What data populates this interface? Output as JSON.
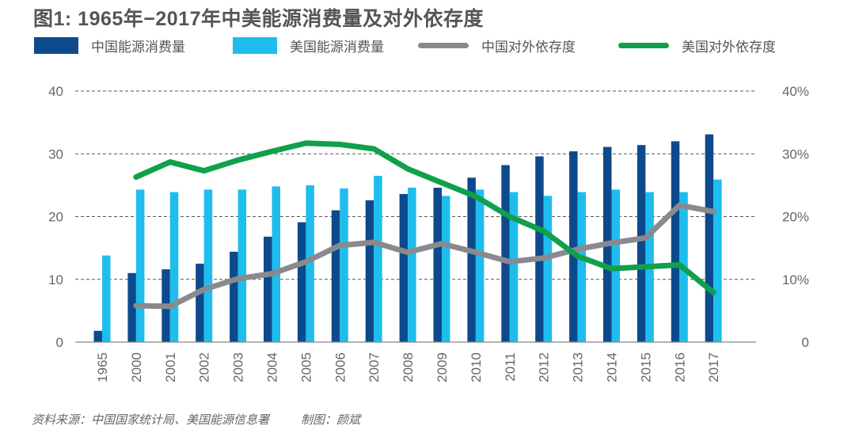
{
  "chart_data": {
    "type": "bar+line",
    "title": "图1: 1965年−2017年中美能源消费量及对外依存度",
    "categories": [
      "1965",
      "2000",
      "2001",
      "2002",
      "2003",
      "2004",
      "2005",
      "2006",
      "2007",
      "2008",
      "2009",
      "2010",
      "2011",
      "2012",
      "2013",
      "2014",
      "2015",
      "2016",
      "2017"
    ],
    "left_axis": {
      "ylim": [
        0,
        40
      ],
      "ticks": [
        "0",
        "10",
        "20",
        "30",
        "40"
      ]
    },
    "right_axis": {
      "ylim": [
        0,
        40
      ],
      "ticks": [
        "0",
        "10%",
        "20%",
        "30%",
        "40%"
      ],
      "unit": "%"
    },
    "grid": true,
    "legend_placement": "top",
    "series": [
      {
        "name": "中国能源消费量",
        "type": "bar",
        "axis": "left",
        "color": "#0d4a8c",
        "values": [
          1.8,
          11.0,
          11.6,
          12.5,
          14.4,
          16.8,
          19.1,
          21.0,
          22.6,
          23.6,
          24.6,
          26.2,
          28.2,
          29.6,
          30.4,
          31.1,
          31.4,
          32.0,
          33.1
        ]
      },
      {
        "name": "美国能源消费量",
        "type": "bar",
        "axis": "left",
        "color": "#1fbdee",
        "values": [
          13.8,
          24.3,
          23.9,
          24.3,
          24.3,
          24.8,
          25.0,
          24.5,
          26.5,
          24.6,
          23.3,
          24.3,
          23.9,
          23.3,
          23.9,
          24.3,
          23.9,
          23.9,
          25.9
        ]
      },
      {
        "name": "中国对外依存度",
        "type": "line",
        "axis": "right",
        "color": "#8a8a8e",
        "values": [
          null,
          5.8,
          5.7,
          8.4,
          10.1,
          10.9,
          12.8,
          15.4,
          15.9,
          14.3,
          15.7,
          14.3,
          12.8,
          13.4,
          14.8,
          15.8,
          16.6,
          21.8,
          20.8
        ]
      },
      {
        "name": "美国对外依存度",
        "type": "line",
        "axis": "right",
        "color": "#10a04c",
        "values": [
          null,
          26.3,
          28.7,
          27.3,
          29.0,
          30.4,
          31.7,
          31.5,
          30.8,
          27.6,
          25.4,
          23.2,
          20.0,
          17.7,
          13.7,
          11.7,
          12.0,
          12.3,
          7.9
        ]
      }
    ]
  },
  "source": {
    "data_source": "资料来源：中国国家统计局、美国能源信息署",
    "author": "制图：颜斌"
  }
}
